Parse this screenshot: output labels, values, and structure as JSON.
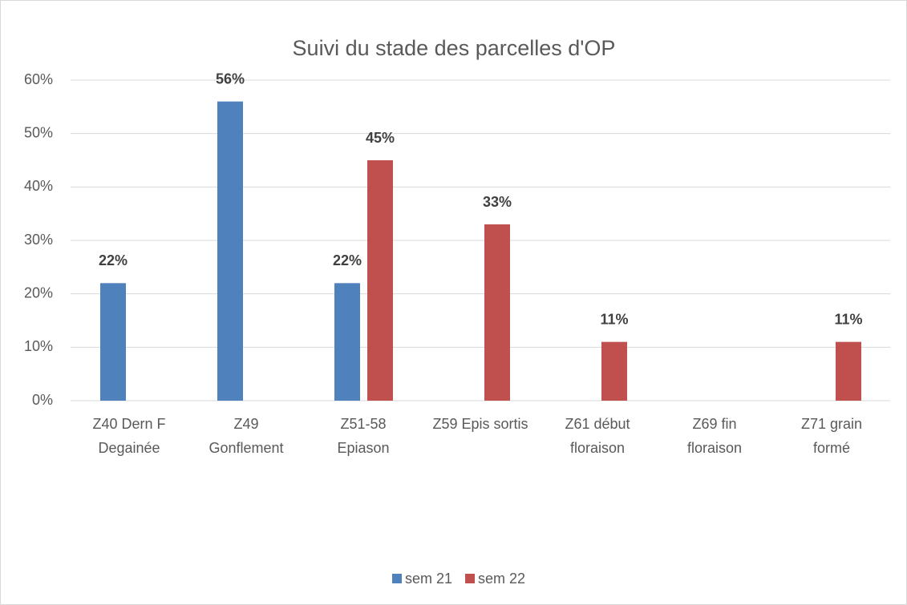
{
  "chart_data": {
    "type": "bar",
    "title": "Suivi du stade des parcelles d'OP",
    "categories": [
      "Z40 Dern F\nDegainée",
      "Z49\nGonflement",
      "Z51-58\nEpiason",
      "Z59 Epis sortis",
      "Z61 début\nfloraison",
      "Z69 fin\nfloraison",
      "Z71 grain\nformé"
    ],
    "series": [
      {
        "name": "sem 21",
        "color": "#4f81bd",
        "values": [
          22,
          56,
          22,
          null,
          null,
          null,
          null
        ],
        "value_labels": [
          "22%",
          "56%",
          "22%",
          null,
          null,
          null,
          null
        ]
      },
      {
        "name": "sem 22",
        "color": "#c0504d",
        "values": [
          null,
          null,
          45,
          33,
          11,
          null,
          11
        ],
        "value_labels": [
          null,
          null,
          "45%",
          "33%",
          "11%",
          null,
          "11%"
        ]
      }
    ],
    "ylim": [
      0,
      60
    ],
    "yticks": [
      {
        "value": 0,
        "label": "0%"
      },
      {
        "value": 10,
        "label": "10%"
      },
      {
        "value": 20,
        "label": "20%"
      },
      {
        "value": 30,
        "label": "30%"
      },
      {
        "value": 40,
        "label": "40%"
      },
      {
        "value": 50,
        "label": "50%"
      },
      {
        "value": 60,
        "label": "60%"
      }
    ],
    "grid": true,
    "legend": "bottom"
  }
}
